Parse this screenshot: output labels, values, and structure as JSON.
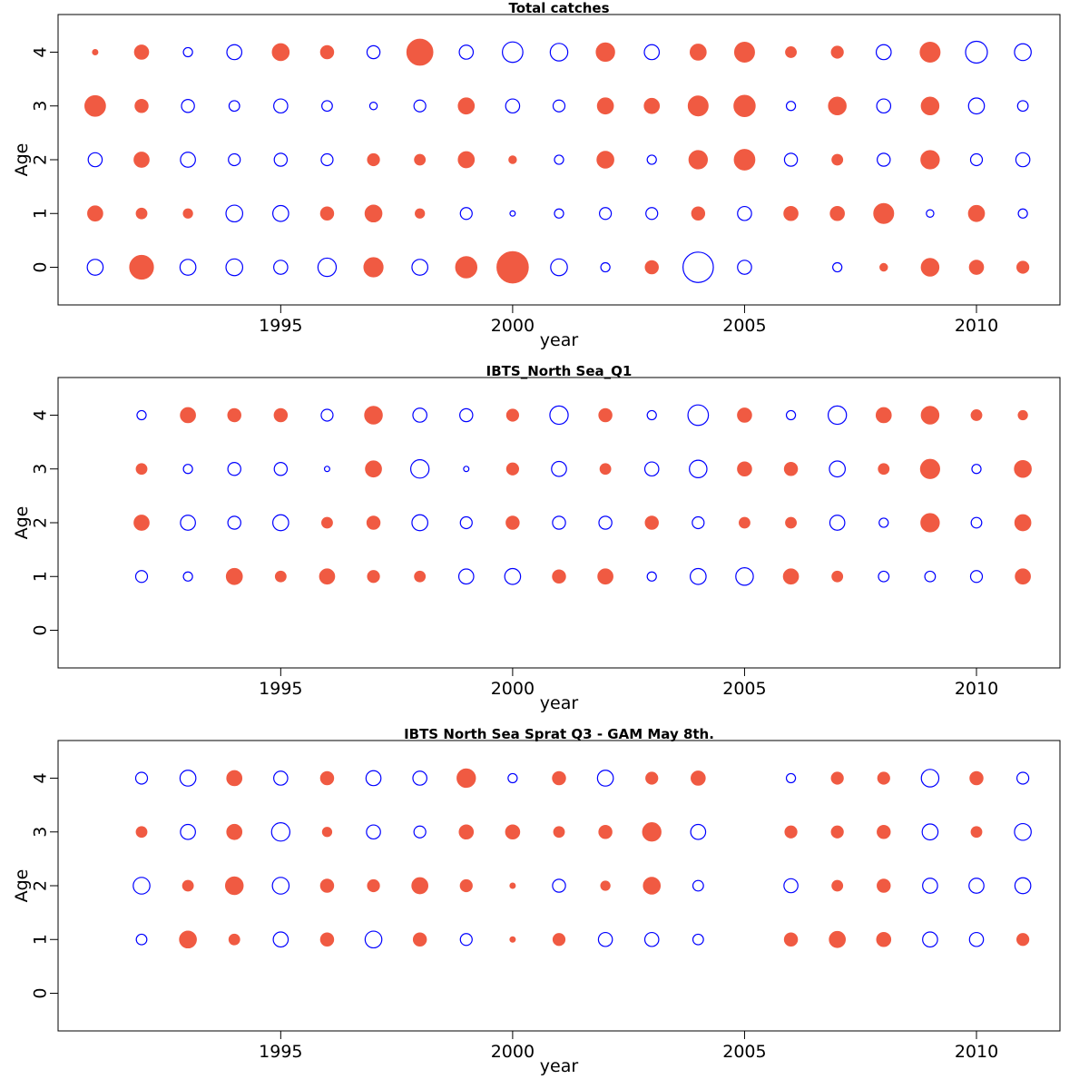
{
  "colors": {
    "positive": "#F05A42",
    "negative": "#0000FF"
  },
  "chart_data": [
    {
      "type": "scatter",
      "title": "Total catches",
      "xlabel": "year",
      "ylabel": "Age",
      "xlim": [
        1990.2,
        2011.8
      ],
      "ylim": [
        -0.7,
        4.7
      ],
      "x_ticks": [
        1995,
        2000,
        2005,
        2010
      ],
      "y_ticks": [
        0,
        1,
        2,
        3,
        4
      ],
      "years": [
        1991,
        1992,
        1993,
        1994,
        1995,
        1996,
        1997,
        1998,
        1999,
        2000,
        2001,
        2002,
        2003,
        2004,
        2005,
        2006,
        2007,
        2008,
        2009,
        2010,
        2011
      ],
      "ages": [
        0,
        1,
        2,
        3,
        4
      ],
      "residuals": [
        [
          0.9,
          -2.0,
          0.9,
          1.0,
          0.7,
          1.2,
          -1.3,
          0.9,
          -1.6,
          -3.5,
          1.0,
          0.3,
          -0.6,
          3.3,
          0.7,
          null,
          0.3,
          -0.2,
          -1.1,
          -0.7,
          -0.5
        ],
        [
          -0.8,
          -0.4,
          -0.3,
          1.0,
          0.9,
          -0.6,
          -1.0,
          -0.3,
          0.5,
          0.1,
          0.3,
          0.5,
          0.5,
          -0.6,
          0.7,
          -0.7,
          -0.7,
          -1.4,
          0.2,
          -0.9,
          0.3
        ],
        [
          0.7,
          -0.8,
          0.8,
          0.5,
          0.6,
          0.5,
          -0.5,
          -0.4,
          -0.9,
          -0.2,
          0.3,
          -1.0,
          0.3,
          -1.2,
          -1.5,
          0.6,
          -0.4,
          0.6,
          -1.2,
          0.5,
          0.7
        ],
        [
          -1.5,
          -0.6,
          0.6,
          0.4,
          0.7,
          0.4,
          0.2,
          0.5,
          -0.9,
          0.7,
          0.5,
          -0.9,
          -0.8,
          -1.4,
          -1.6,
          0.3,
          -1.1,
          0.7,
          -1.1,
          0.9,
          0.4
        ],
        [
          -0.1,
          -0.7,
          0.3,
          0.8,
          -1.0,
          -0.6,
          0.6,
          -2.4,
          0.7,
          1.5,
          1.1,
          -1.2,
          0.8,
          -0.9,
          -1.4,
          -0.4,
          -0.5,
          0.8,
          -1.4,
          1.7,
          1.0
        ]
      ]
    },
    {
      "type": "scatter",
      "title": "IBTS_North Sea_Q1",
      "xlabel": "year",
      "ylabel": "Age",
      "xlim": [
        1990.2,
        2011.8
      ],
      "ylim": [
        -0.7,
        4.7
      ],
      "x_ticks": [
        1995,
        2000,
        2005,
        2010
      ],
      "y_ticks": [
        0,
        1,
        2,
        3,
        4
      ],
      "years": [
        1992,
        1993,
        1994,
        1995,
        1996,
        1997,
        1998,
        1999,
        2000,
        2001,
        2002,
        2003,
        2004,
        2005,
        2006,
        2007,
        2008,
        2009,
        2010,
        2011
      ],
      "ages": [
        1,
        2,
        3,
        4
      ],
      "residuals": [
        [
          0.5,
          0.3,
          -0.9,
          -0.4,
          -0.8,
          -0.5,
          -0.4,
          0.8,
          0.9,
          -0.6,
          -0.8,
          0.3,
          0.9,
          1.1,
          -0.8,
          -0.4,
          0.4,
          0.4,
          0.5,
          -0.8
        ],
        [
          -0.8,
          0.8,
          0.6,
          0.9,
          -0.4,
          -0.6,
          0.9,
          0.5,
          -0.6,
          0.6,
          0.6,
          -0.6,
          0.5,
          -0.4,
          -0.4,
          0.8,
          0.3,
          -1.2,
          0.4,
          -0.9
        ],
        [
          -0.4,
          0.3,
          0.6,
          0.6,
          0.1,
          -0.9,
          1.2,
          0.1,
          -0.5,
          0.8,
          -0.4,
          0.7,
          1.1,
          -0.7,
          -0.6,
          0.9,
          -0.4,
          -1.3,
          0.3,
          -1.0
        ],
        [
          0.3,
          -0.8,
          -0.6,
          -0.6,
          0.5,
          -1.1,
          0.7,
          0.6,
          -0.5,
          1.2,
          -0.6,
          0.3,
          1.5,
          -0.7,
          0.3,
          1.2,
          -0.8,
          -1.1,
          -0.4,
          -0.3
        ]
      ]
    },
    {
      "type": "scatter",
      "title": "IBTS North Sea Sprat Q3 - GAM May 8th.",
      "xlabel": "year",
      "ylabel": "Age",
      "xlim": [
        1990.2,
        2011.8
      ],
      "ylim": [
        -0.7,
        4.7
      ],
      "x_ticks": [
        1995,
        2000,
        2005,
        2010
      ],
      "y_ticks": [
        0,
        1,
        2,
        3,
        4
      ],
      "years": [
        1992,
        1993,
        1994,
        1995,
        1996,
        1997,
        1998,
        1999,
        2000,
        2001,
        2002,
        2003,
        2004,
        2005,
        2006,
        2007,
        2008,
        2009,
        2010,
        2011
      ],
      "ages": [
        1,
        2,
        3,
        4
      ],
      "residuals": [
        [
          0.4,
          -1.0,
          -0.4,
          0.8,
          -0.6,
          1.0,
          -0.6,
          0.5,
          -0.1,
          -0.5,
          0.7,
          0.7,
          0.4,
          null,
          -0.6,
          -0.9,
          -0.7,
          0.8,
          0.7,
          -0.5
        ],
        [
          1.0,
          -0.4,
          -1.1,
          1.0,
          -0.6,
          -0.5,
          -0.9,
          -0.5,
          -0.1,
          0.6,
          -0.3,
          -1.0,
          0.4,
          null,
          0.7,
          -0.4,
          -0.6,
          0.8,
          0.8,
          0.9
        ],
        [
          -0.4,
          0.8,
          -0.8,
          1.2,
          -0.3,
          0.7,
          0.5,
          -0.7,
          -0.7,
          -0.4,
          -0.6,
          -1.2,
          0.8,
          null,
          -0.5,
          -0.5,
          -0.6,
          0.9,
          -0.4,
          1.0
        ],
        [
          0.5,
          0.9,
          -0.8,
          0.7,
          -0.6,
          0.8,
          0.7,
          -1.2,
          0.3,
          -0.6,
          0.9,
          -0.5,
          -0.7,
          null,
          0.3,
          -0.5,
          -0.5,
          1.1,
          -0.6,
          0.5
        ]
      ]
    }
  ]
}
